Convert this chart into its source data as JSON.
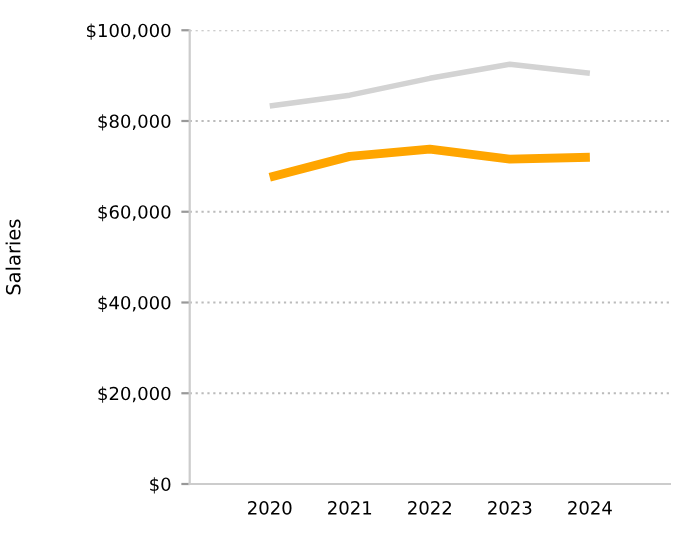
{
  "chart_data": {
    "type": "line",
    "ylabel": "Salaries",
    "categories": [
      "2020",
      "2021",
      "2022",
      "2023",
      "2024"
    ],
    "series": [
      {
        "color": "#d3d3d3",
        "values": [
          83300,
          85700,
          89400,
          92500,
          90500
        ]
      },
      {
        "color": "#ffa500",
        "values": [
          67600,
          72200,
          73800,
          71600,
          72000
        ]
      }
    ],
    "ylim": [
      0,
      100000
    ],
    "yticks": [
      {
        "value": 0,
        "label": "$0"
      },
      {
        "value": 20000,
        "label": "$20,000"
      },
      {
        "value": 40000,
        "label": "$40,000"
      },
      {
        "value": 60000,
        "label": "$60,000"
      },
      {
        "value": 80000,
        "label": "$80,000"
      },
      {
        "value": 100000,
        "label": "$100,000"
      }
    ],
    "grid": "y",
    "marker": "none",
    "line_style": "solid"
  }
}
